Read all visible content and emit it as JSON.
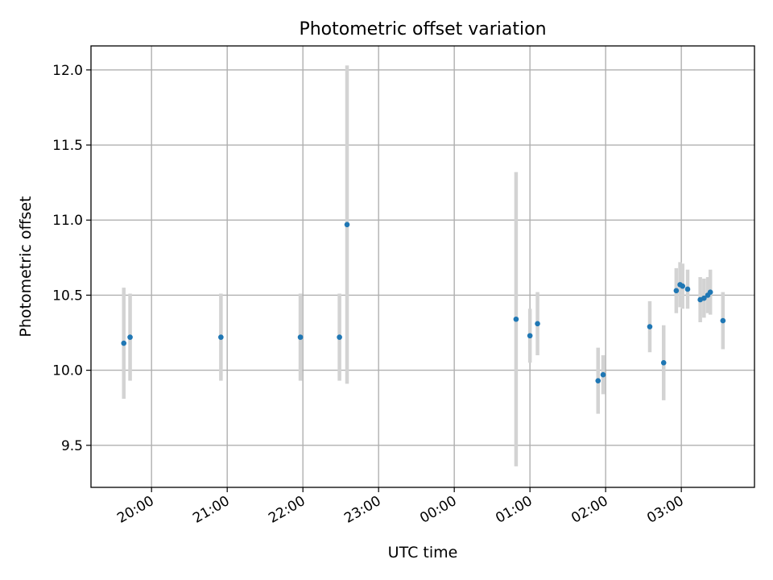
{
  "chart_data": {
    "type": "scatter",
    "title": "Photometric offset variation",
    "xlabel": "UTC time",
    "ylabel": "Photometric offset",
    "x_axis": {
      "kind": "time",
      "range": [
        "19:12",
        "03:58"
      ],
      "ticks": [
        "20:00",
        "21:00",
        "22:00",
        "23:00",
        "00:00",
        "01:00",
        "02:00",
        "03:00"
      ],
      "tick_rotation": 30
    },
    "y_axis": {
      "range": [
        9.22,
        12.16
      ],
      "ticks": [
        "9.5",
        "10.0",
        "10.5",
        "11.0",
        "11.5",
        "12.0"
      ]
    },
    "grid": true,
    "colors": {
      "point": "#1f77b4",
      "errorbar": "#d3d3d3"
    },
    "series": [
      {
        "points": [
          {
            "x": "19:38",
            "y": 10.18,
            "err": 0.37
          },
          {
            "x": "19:43",
            "y": 10.22,
            "err": 0.29
          },
          {
            "x": "20:55",
            "y": 10.22,
            "err": 0.29
          },
          {
            "x": "21:58",
            "y": 10.22,
            "err": 0.29
          },
          {
            "x": "22:29",
            "y": 10.22,
            "err": 0.29
          },
          {
            "x": "22:35",
            "y": 10.97,
            "err": 1.06
          },
          {
            "x": "00:49",
            "y": 10.34,
            "err": 0.98
          },
          {
            "x": "01:00",
            "y": 10.23,
            "err": 0.18
          },
          {
            "x": "01:06",
            "y": 10.31,
            "err": 0.21
          },
          {
            "x": "01:54",
            "y": 9.93,
            "err": 0.22
          },
          {
            "x": "01:58",
            "y": 9.97,
            "err": 0.13
          },
          {
            "x": "02:35",
            "y": 10.29,
            "err": 0.17
          },
          {
            "x": "02:46",
            "y": 10.05,
            "err": 0.25
          },
          {
            "x": "02:56",
            "y": 10.53,
            "err": 0.15
          },
          {
            "x": "02:59",
            "y": 10.57,
            "err": 0.15
          },
          {
            "x": "03:01",
            "y": 10.56,
            "err": 0.15
          },
          {
            "x": "03:05",
            "y": 10.54,
            "err": 0.13
          },
          {
            "x": "03:15",
            "y": 10.47,
            "err": 0.15
          },
          {
            "x": "03:18",
            "y": 10.48,
            "err": 0.13
          },
          {
            "x": "03:21",
            "y": 10.5,
            "err": 0.12
          },
          {
            "x": "03:23",
            "y": 10.52,
            "err": 0.15
          },
          {
            "x": "03:33",
            "y": 10.33,
            "err": 0.19
          }
        ]
      }
    ]
  }
}
